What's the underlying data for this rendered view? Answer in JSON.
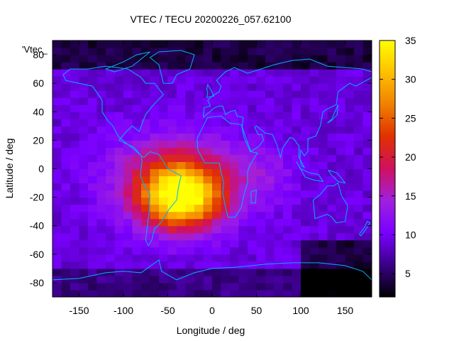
{
  "chart_data": {
    "type": "heatmap",
    "title": "VTEC / TECU 20200226_057.62100",
    "xlabel": "Longitude / deg",
    "ylabel": "Latitude / deg",
    "series_label": "'Vtec_",
    "xlim": [
      -180,
      180
    ],
    "ylim": [
      -90,
      90
    ],
    "x_ticks": [
      "-150",
      "-100",
      "-50",
      "0",
      "50",
      "100",
      "150"
    ],
    "y_ticks": [
      "80",
      "60",
      "40",
      "20",
      "0",
      "-20",
      "-40",
      "-60",
      "-80"
    ],
    "colorbar": {
      "range": [
        2,
        35
      ],
      "ticks": [
        "35",
        "30",
        "25",
        "20",
        "15",
        "10",
        "5"
      ],
      "colormap": [
        "#000000",
        "#3a0088",
        "#7a00ff",
        "#a020e0",
        "#d01060",
        "#e03000",
        "#f08000",
        "#ffc000",
        "#ffff00"
      ]
    },
    "grid": false,
    "legend": "none",
    "features": {
      "peak_value_tecu": 33,
      "peak_location": {
        "lon": -35,
        "lat": -20
      },
      "enhancement_region": {
        "lon": [
          -120,
          40
        ],
        "lat": [
          -45,
          30
        ]
      },
      "background_tecu": 9,
      "low_regions_tecu": 3
    },
    "coastline_color": "#00b0ff"
  }
}
